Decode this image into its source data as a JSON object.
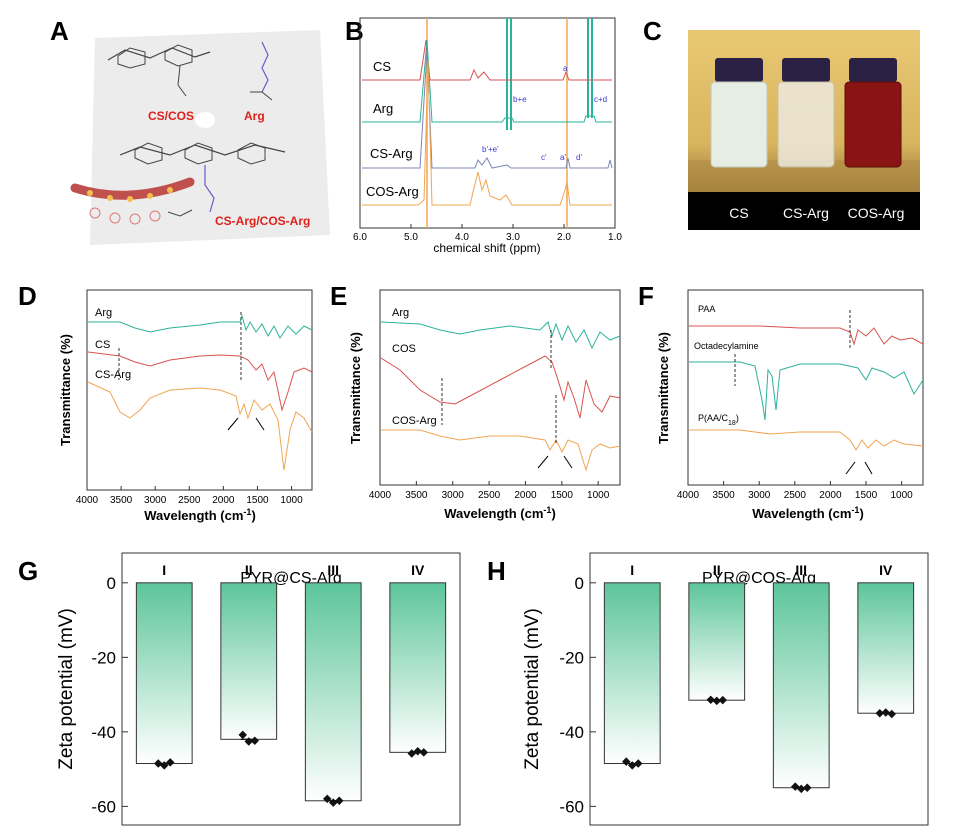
{
  "panel_letters": [
    "A",
    "B",
    "C",
    "D",
    "E",
    "F",
    "G",
    "H"
  ],
  "colors": {
    "red": "#d9534f",
    "teal": "#2bb39a",
    "orange": "#f0a552",
    "blue_gray": "#7a86b8",
    "label_red": "#e0201b",
    "bar_green": "#5cc59a"
  },
  "panelA": {
    "label_cs_cos": "CS/COS",
    "label_arg": "Arg",
    "label_product": "CS-Arg/COS-Arg"
  },
  "panelB": {
    "traces": [
      "CS",
      "Arg",
      "CS-Arg",
      "COS-Arg"
    ],
    "peak_labels": [
      "b+e",
      "c+d",
      "a",
      "b'+e'",
      "c'",
      "a'",
      "d'"
    ],
    "xlabel": "chemical shift (ppm)",
    "ticks": [
      "6.0",
      "5.0",
      "4.0",
      "3.0",
      "2.0",
      "1.0"
    ]
  },
  "panelC": {
    "vial_labels": [
      "CS",
      "CS-Arg",
      "COS-Arg"
    ]
  },
  "panelD": {
    "ylabel": "Transmittance (%)",
    "xlabel": "Wavelength (cm",
    "xlabel_sup": "-1",
    "xlabel_close": ")",
    "traces": [
      "Arg",
      "CS",
      "CS-Arg"
    ],
    "ticks": [
      "4000",
      "3500",
      "3000",
      "2500",
      "2000",
      "1500",
      "1000"
    ]
  },
  "panelE": {
    "ylabel": "Transmittance (%)",
    "xlabel": "Wavelength (cm",
    "xlabel_sup": "-1",
    "xlabel_close": ")",
    "traces": [
      "Arg",
      "COS",
      "COS-Arg"
    ],
    "ticks": [
      "4000",
      "3500",
      "3000",
      "2500",
      "2000",
      "1500",
      "1000"
    ]
  },
  "panelF": {
    "ylabel": "Transmittance (%)",
    "xlabel": "Wavelength (cm",
    "xlabel_sup": "-1",
    "xlabel_close": ")",
    "traces": [
      "PAA",
      "Octadecylamine",
      "P(AA/C",
      "18",
      ")"
    ],
    "ticks": [
      "4000",
      "3500",
      "3000",
      "2500",
      "2000",
      "1500",
      "1000"
    ]
  },
  "chart_data": [
    {
      "panel": "G",
      "type": "bar",
      "title": "PYR@CS-Arg",
      "ylabel": "Zeta potential (mV)",
      "categories": [
        "I",
        "II",
        "III",
        "IV"
      ],
      "values": [
        -48.5,
        -42.0,
        -58.5,
        -45.5
      ],
      "ylim": [
        -65,
        8
      ],
      "yticks": [
        0,
        -20,
        -40,
        -60
      ],
      "points": [
        [
          -48.5,
          -49.0,
          -48.2
        ],
        [
          -40.8,
          -42.6,
          -42.4
        ],
        [
          -58.0,
          -59.0,
          -58.5
        ],
        [
          -45.8,
          -45.2,
          -45.5
        ]
      ]
    },
    {
      "panel": "H",
      "type": "bar",
      "title": "PYR@COS-Arg",
      "ylabel": "Zeta potential (mV)",
      "categories": [
        "I",
        "II",
        "III",
        "IV"
      ],
      "values": [
        -48.5,
        -31.5,
        -55.0,
        -35.0
      ],
      "ylim": [
        -65,
        8
      ],
      "yticks": [
        0,
        -20,
        -40,
        -60
      ],
      "points": [
        [
          -48.0,
          -49.0,
          -48.5
        ],
        [
          -31.4,
          -31.7,
          -31.5
        ],
        [
          -54.7,
          -55.3,
          -55.0
        ],
        [
          -35.0,
          -34.8,
          -35.2
        ]
      ]
    }
  ]
}
